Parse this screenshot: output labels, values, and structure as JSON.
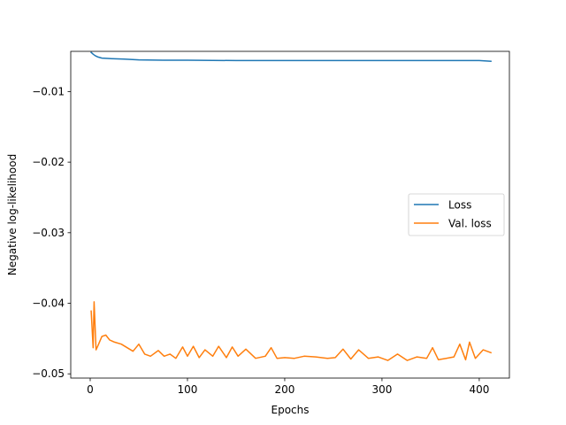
{
  "chart_data": {
    "type": "line",
    "title": "",
    "xlabel": "Epochs",
    "ylabel": "Negative log-likelihood",
    "xlim": [
      -20,
      431
    ],
    "ylim": [
      -0.0506,
      -0.0043
    ],
    "xticks": [
      0,
      100,
      200,
      300,
      400
    ],
    "xtick_labels": [
      "0",
      "100",
      "200",
      "300",
      "400"
    ],
    "yticks": [
      -0.05,
      -0.04,
      -0.03,
      -0.02,
      -0.01
    ],
    "ytick_labels": [
      "−0.05",
      "−0.04",
      "−0.03",
      "−0.02",
      "−0.01"
    ],
    "grid": false,
    "legend_position": "center-right",
    "series": [
      {
        "name": "Loss",
        "color": "#1f77b4",
        "x": [
          1,
          3,
          5,
          8,
          12,
          18,
          25,
          35,
          50,
          75,
          100,
          150,
          200,
          250,
          300,
          350,
          400,
          412
        ],
        "y": [
          -0.00445,
          -0.0047,
          -0.0049,
          -0.0051,
          -0.00525,
          -0.0053,
          -0.00535,
          -0.0054,
          -0.0055,
          -0.00555,
          -0.00555,
          -0.0056,
          -0.0056,
          -0.0056,
          -0.0056,
          -0.0056,
          -0.0056,
          -0.0057
        ]
      },
      {
        "name": "Val. loss",
        "color": "#ff7f0e",
        "x": [
          1,
          3,
          4,
          6,
          8,
          12,
          16,
          20,
          25,
          32,
          38,
          44,
          50,
          56,
          62,
          70,
          76,
          82,
          88,
          95,
          100,
          106,
          112,
          118,
          126,
          132,
          140,
          146,
          152,
          160,
          170,
          180,
          186,
          192,
          200,
          210,
          220,
          232,
          244,
          252,
          260,
          268,
          276,
          286,
          296,
          306,
          316,
          326,
          336,
          346,
          352,
          358,
          366,
          374,
          380,
          386,
          390,
          396,
          404,
          412
        ],
        "y": [
          -0.0411,
          -0.0463,
          -0.0398,
          -0.0466,
          -0.046,
          -0.0447,
          -0.0445,
          -0.0452,
          -0.0455,
          -0.0458,
          -0.0463,
          -0.0468,
          -0.0458,
          -0.0472,
          -0.0475,
          -0.0467,
          -0.0475,
          -0.0472,
          -0.0478,
          -0.0462,
          -0.0475,
          -0.0461,
          -0.0477,
          -0.0466,
          -0.0475,
          -0.0461,
          -0.0477,
          -0.0462,
          -0.0475,
          -0.0465,
          -0.0478,
          -0.0475,
          -0.0463,
          -0.0478,
          -0.0477,
          -0.0478,
          -0.0475,
          -0.0476,
          -0.0478,
          -0.0477,
          -0.0465,
          -0.0479,
          -0.0466,
          -0.0478,
          -0.0476,
          -0.0481,
          -0.0472,
          -0.0481,
          -0.0476,
          -0.0478,
          -0.0463,
          -0.048,
          -0.0478,
          -0.0476,
          -0.0458,
          -0.048,
          -0.0455,
          -0.0478,
          -0.0466,
          -0.047
        ]
      }
    ]
  }
}
